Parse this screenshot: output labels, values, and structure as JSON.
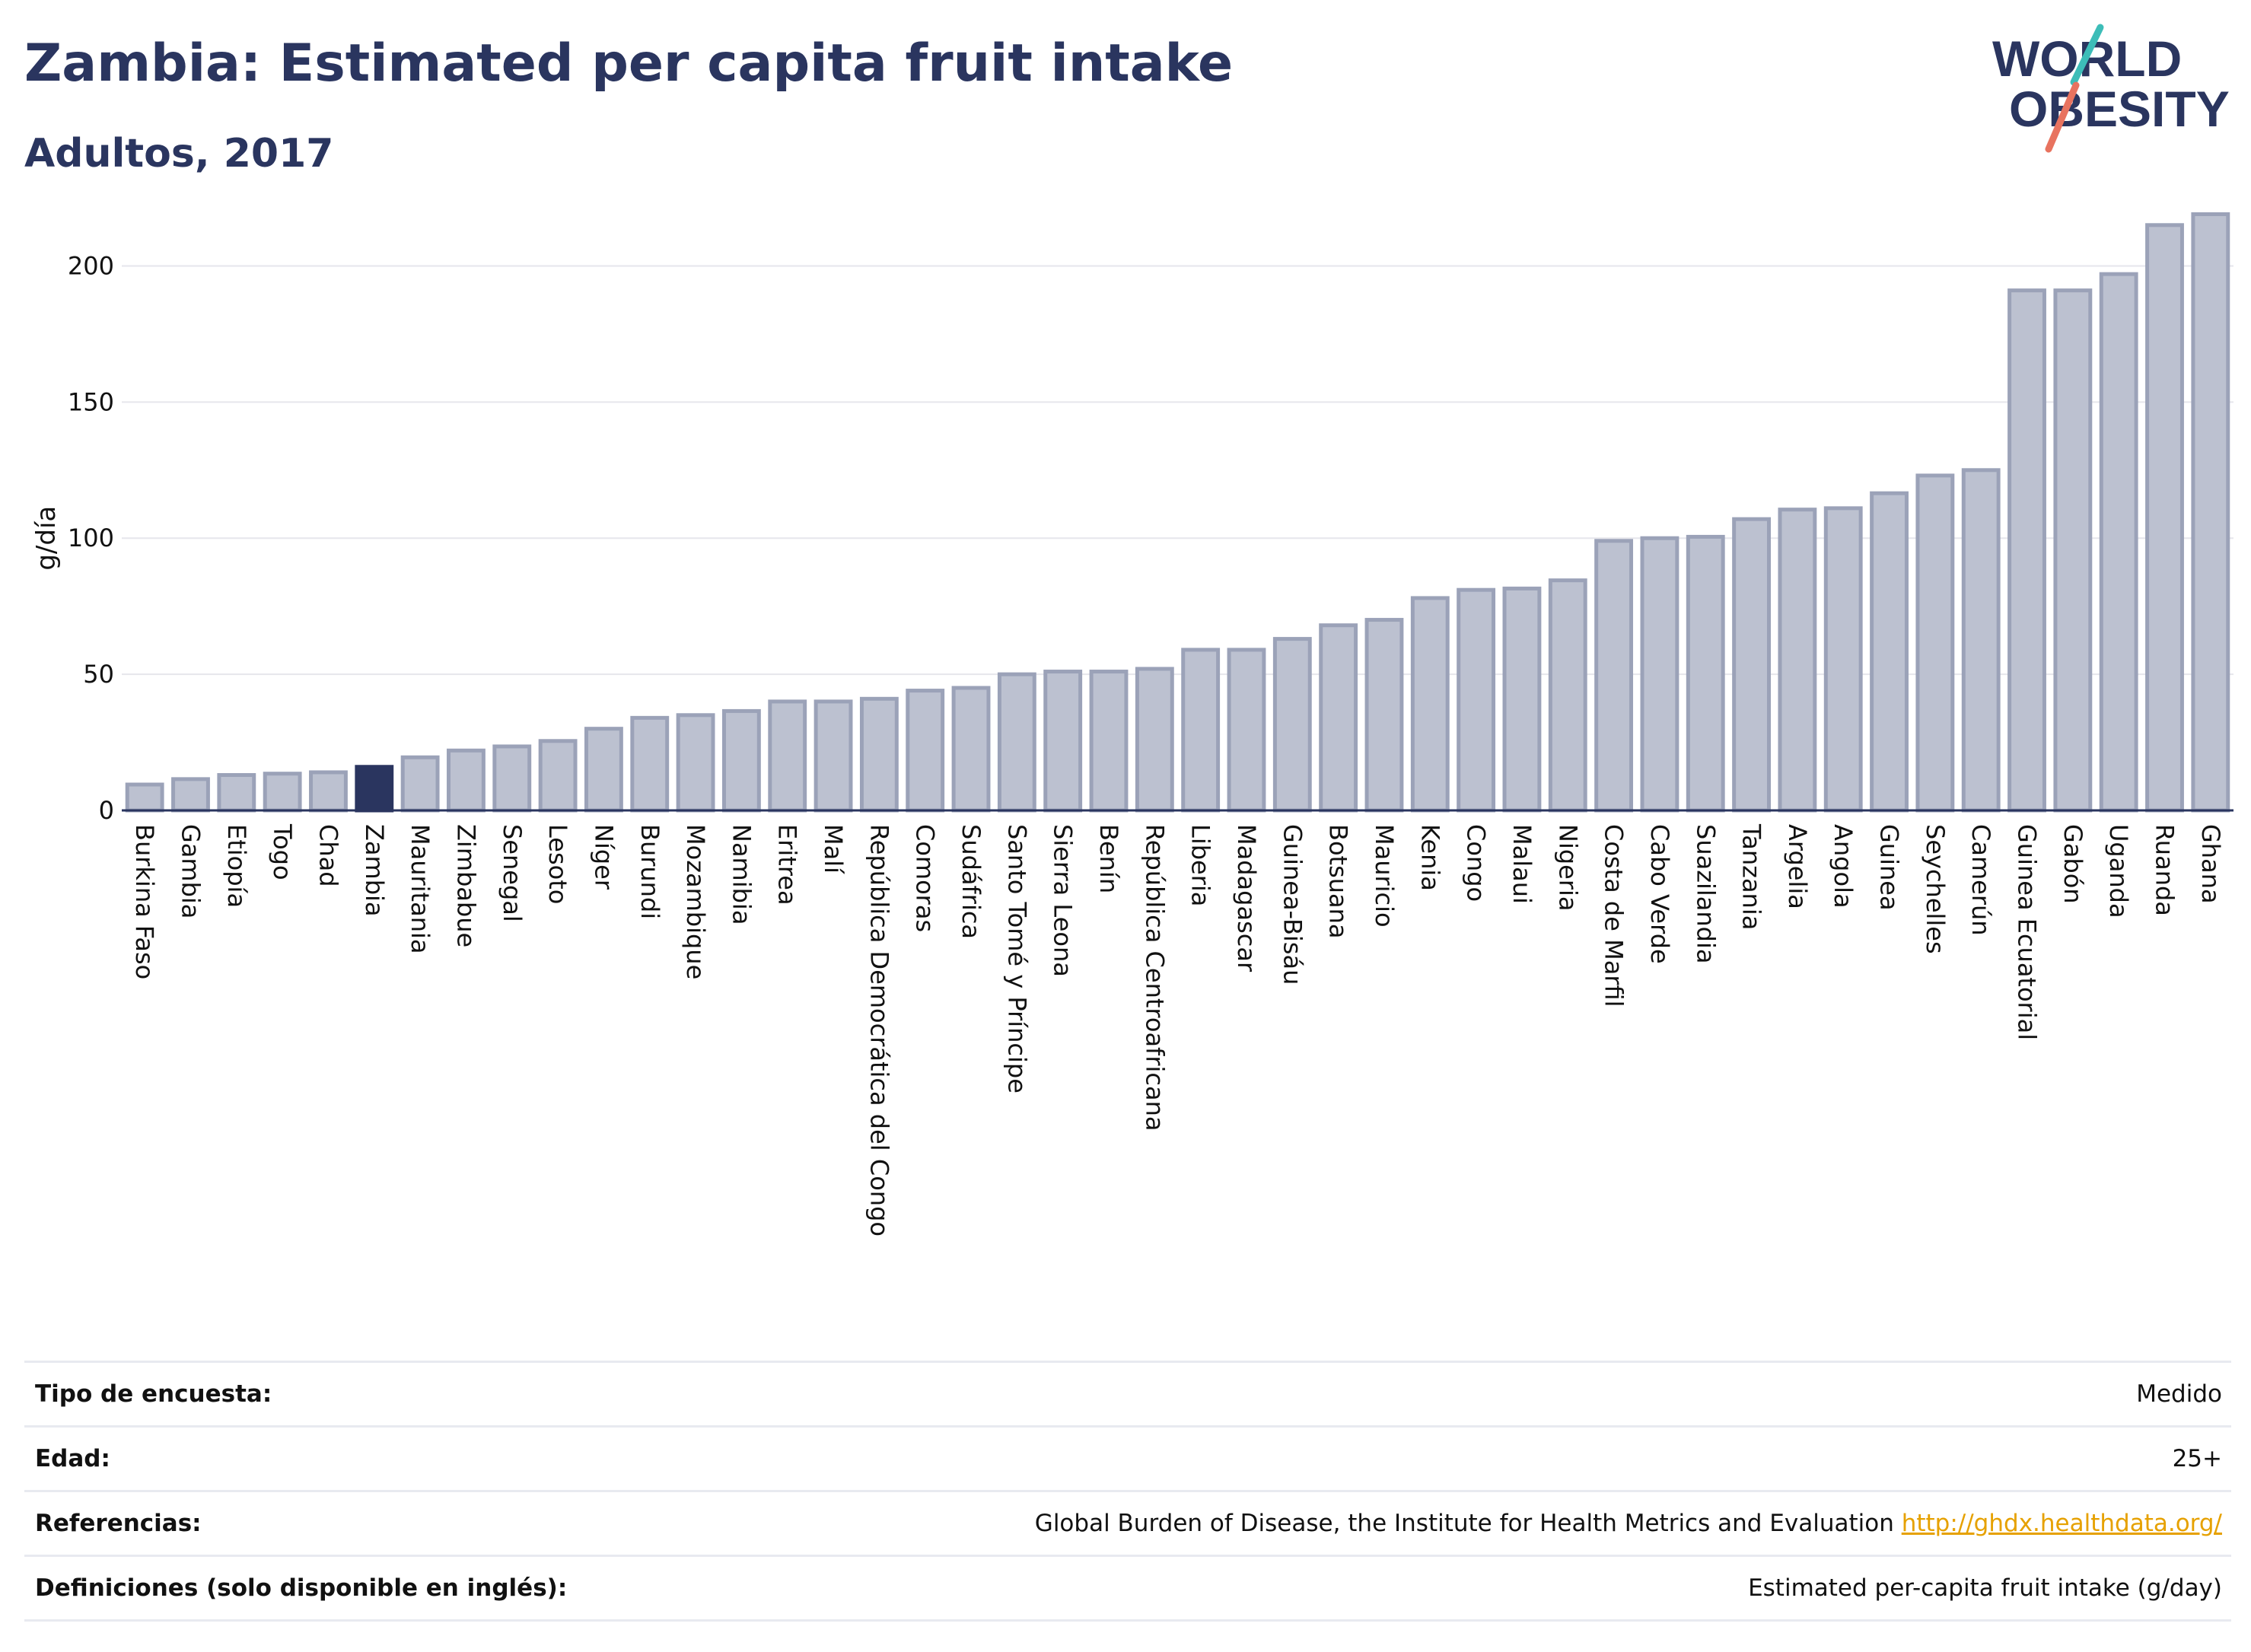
{
  "header": {
    "title": "Zambia: Estimated per capita fruit intake",
    "subtitle": "Adultos, 2017"
  },
  "logo": {
    "line1": "WORLD",
    "line2": "OBESITY"
  },
  "colors": {
    "bar_fill": "#bcc1d0",
    "bar_stroke": "#9ba2b8",
    "highlight": "#2a355f",
    "grid": "#e6e6ec",
    "logo_teal": "#3dbdb8",
    "logo_coral": "#e8735f"
  },
  "chart_data": {
    "type": "bar",
    "title": "Zambia: Estimated per capita fruit intake",
    "subtitle": "Adultos, 2017",
    "ylabel": "g/día",
    "xlabel": "",
    "ylim": [
      0,
      225
    ],
    "yticks": [
      0,
      50,
      100,
      150,
      200
    ],
    "grid": true,
    "highlight": "Zambia",
    "categories": [
      "Burkina Faso",
      "Gambia",
      "Etiopía",
      "Togo",
      "Chad",
      "Zambia",
      "Mauritania",
      "Zimbabue",
      "Senegal",
      "Lesoto",
      "Níger",
      "Burundi",
      "Mozambique",
      "Namibia",
      "Eritrea",
      "Malí",
      "República Democrática del Congo",
      "Comoras",
      "Sudáfrica",
      "Santo Tomé y Príncipe",
      "Sierra Leona",
      "Benín",
      "República Centroafricana",
      "Liberia",
      "Madagascar",
      "Guinea-Bisáu",
      "Botsuana",
      "Mauricio",
      "Kenia",
      "Congo",
      "Malaui",
      "Nigeria",
      "Costa de Marfil",
      "Cabo Verde",
      "Suazilandia",
      "Tanzania",
      "Argelia",
      "Angola",
      "Guinea",
      "Seychelles",
      "Camerún",
      "Guinea Ecuatorial",
      "Gabón",
      "Uganda",
      "Ruanda",
      "Ghana"
    ],
    "values": [
      9.5,
      11.5,
      13,
      13.5,
      14,
      16,
      19.5,
      22,
      23.5,
      25.5,
      30,
      34,
      35,
      36.5,
      40,
      40,
      41,
      44,
      45,
      50,
      51,
      51,
      52,
      59,
      59,
      63,
      68,
      70,
      78,
      81,
      81.5,
      84.5,
      99,
      100,
      100.5,
      107,
      110.5,
      111,
      116.5,
      123,
      125,
      191,
      191,
      197,
      215,
      219
    ]
  },
  "info": {
    "survey_label": "Tipo de encuesta:",
    "survey_value": "Medido",
    "age_label": "Edad:",
    "age_value": "25+",
    "refs_label": "Referencias:",
    "refs_text": "Global Burden of Disease, the Institute for Health Metrics and Evaluation",
    "refs_link": "http://ghdx.healthdata.org/",
    "defs_label": "Definiciones (solo disponible en inglés):",
    "defs_value": "Estimated per-capita fruit intake (g/day)"
  }
}
